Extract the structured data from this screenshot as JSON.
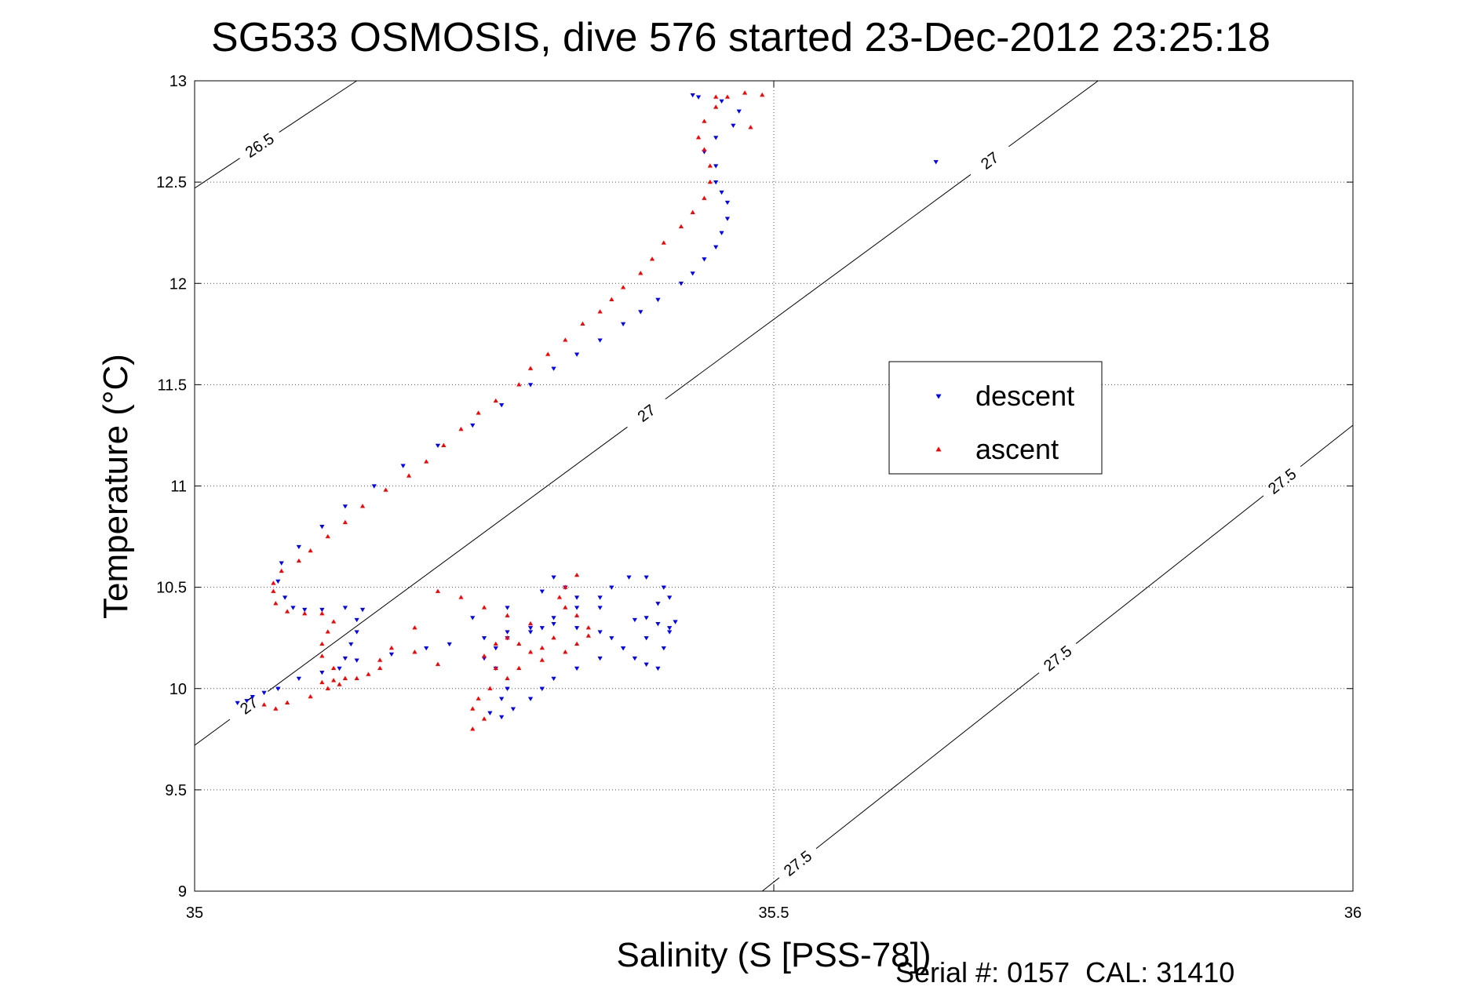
{
  "chart_data": {
    "type": "scatter",
    "title": "SG533 OSMOSIS, dive 576 started 23-Dec-2012 23:25:18",
    "xlabel": "Salinity (S [PSS-78])",
    "ylabel": "Temperature (°C)",
    "xlim": [
      35,
      36
    ],
    "ylim": [
      9,
      13
    ],
    "xticks": [
      35,
      35.5,
      36
    ],
    "xtick_labels": [
      "35",
      "35.5",
      "36"
    ],
    "yticks": [
      9,
      9.5,
      10,
      10.5,
      11,
      11.5,
      12,
      12.5,
      13
    ],
    "ytick_labels": [
      "9",
      "9.5",
      "10",
      "10.5",
      "11",
      "11.5",
      "12",
      "12.5",
      "13"
    ],
    "grid": true,
    "legend_position": "right-middle",
    "footer": "Serial #: 0157  CAL: 31410",
    "density_contours": [
      {
        "label": "26.5",
        "points": [
          [
            35.0,
            12.47
          ],
          [
            35.14,
            13.0
          ]
        ]
      },
      {
        "label": "27",
        "points": [
          [
            35.0,
            9.72
          ],
          [
            35.78,
            13.0
          ]
        ]
      },
      {
        "label": "27.5",
        "points": [
          [
            35.49,
            9.0
          ],
          [
            36.0,
            11.3
          ]
        ]
      }
    ],
    "series": [
      {
        "name": "descent",
        "color": "#0000ff",
        "marker": "triangle-down",
        "points": [
          [
            35.037,
            9.93
          ],
          [
            35.045,
            9.94
          ],
          [
            35.05,
            9.96
          ],
          [
            35.06,
            9.98
          ],
          [
            35.072,
            10.0
          ],
          [
            35.09,
            10.05
          ],
          [
            35.11,
            10.08
          ],
          [
            35.125,
            10.1
          ],
          [
            35.13,
            10.15
          ],
          [
            35.135,
            10.22
          ],
          [
            35.14,
            10.28
          ],
          [
            35.14,
            10.34
          ],
          [
            35.145,
            10.39
          ],
          [
            35.13,
            10.4
          ],
          [
            35.11,
            10.39
          ],
          [
            35.095,
            10.39
          ],
          [
            35.085,
            10.4
          ],
          [
            35.078,
            10.45
          ],
          [
            35.072,
            10.53
          ],
          [
            35.075,
            10.62
          ],
          [
            35.09,
            10.7
          ],
          [
            35.11,
            10.8
          ],
          [
            35.13,
            10.9
          ],
          [
            35.155,
            11.0
          ],
          [
            35.18,
            11.1
          ],
          [
            35.21,
            11.2
          ],
          [
            35.24,
            11.3
          ],
          [
            35.265,
            11.4
          ],
          [
            35.29,
            11.5
          ],
          [
            35.31,
            11.58
          ],
          [
            35.33,
            11.65
          ],
          [
            35.35,
            11.72
          ],
          [
            35.37,
            11.8
          ],
          [
            35.385,
            11.86
          ],
          [
            35.4,
            11.92
          ],
          [
            35.42,
            12.0
          ],
          [
            35.43,
            12.05
          ],
          [
            35.44,
            12.12
          ],
          [
            35.45,
            12.18
          ],
          [
            35.455,
            12.25
          ],
          [
            35.46,
            12.32
          ],
          [
            35.46,
            12.4
          ],
          [
            35.455,
            12.45
          ],
          [
            35.45,
            12.5
          ],
          [
            35.45,
            12.58
          ],
          [
            35.44,
            12.65
          ],
          [
            35.45,
            12.72
          ],
          [
            35.465,
            12.78
          ],
          [
            35.47,
            12.85
          ],
          [
            35.455,
            12.9
          ],
          [
            35.435,
            12.92
          ],
          [
            35.43,
            12.93
          ],
          [
            35.14,
            10.14
          ],
          [
            35.17,
            10.17
          ],
          [
            35.2,
            10.2
          ],
          [
            35.22,
            10.22
          ],
          [
            35.25,
            10.25
          ],
          [
            35.27,
            10.28
          ],
          [
            35.29,
            10.3
          ],
          [
            35.31,
            10.35
          ],
          [
            35.33,
            10.4
          ],
          [
            35.35,
            10.45
          ],
          [
            35.36,
            10.5
          ],
          [
            35.375,
            10.55
          ],
          [
            35.39,
            10.55
          ],
          [
            35.405,
            10.5
          ],
          [
            35.41,
            10.45
          ],
          [
            35.4,
            10.42
          ],
          [
            35.39,
            10.35
          ],
          [
            35.4,
            10.32
          ],
          [
            35.41,
            10.28
          ],
          [
            35.39,
            10.25
          ],
          [
            35.37,
            10.2
          ],
          [
            35.35,
            10.15
          ],
          [
            35.33,
            10.1
          ],
          [
            35.31,
            10.05
          ],
          [
            35.3,
            10.0
          ],
          [
            35.29,
            9.95
          ],
          [
            35.275,
            9.9
          ],
          [
            35.265,
            9.86
          ],
          [
            35.255,
            9.88
          ],
          [
            35.265,
            9.95
          ],
          [
            35.27,
            10.0
          ],
          [
            35.26,
            10.1
          ],
          [
            35.25,
            10.15
          ],
          [
            35.26,
            10.2
          ],
          [
            35.27,
            10.25
          ],
          [
            35.29,
            10.28
          ],
          [
            35.3,
            10.3
          ],
          [
            35.31,
            10.32
          ],
          [
            35.33,
            10.3
          ],
          [
            35.35,
            10.28
          ],
          [
            35.36,
            10.25
          ],
          [
            35.37,
            10.2
          ],
          [
            35.38,
            10.15
          ],
          [
            35.39,
            10.12
          ],
          [
            35.4,
            10.1
          ],
          [
            35.405,
            10.2
          ],
          [
            35.41,
            10.3
          ],
          [
            35.415,
            10.33
          ],
          [
            35.38,
            10.34
          ],
          [
            35.35,
            10.4
          ],
          [
            35.33,
            10.45
          ],
          [
            35.32,
            10.5
          ],
          [
            35.31,
            10.55
          ],
          [
            35.3,
            10.48
          ],
          [
            35.27,
            10.4
          ],
          [
            35.24,
            10.35
          ],
          [
            35.64,
            12.6
          ]
        ]
      },
      {
        "name": "ascent",
        "color": "#ff0000",
        "marker": "triangle-up",
        "points": [
          [
            35.06,
            9.92
          ],
          [
            35.07,
            9.9
          ],
          [
            35.08,
            9.93
          ],
          [
            35.1,
            9.96
          ],
          [
            35.115,
            10.0
          ],
          [
            35.125,
            10.02
          ],
          [
            35.13,
            10.05
          ],
          [
            35.12,
            10.1
          ],
          [
            35.11,
            10.16
          ],
          [
            35.11,
            10.22
          ],
          [
            35.115,
            10.28
          ],
          [
            35.12,
            10.33
          ],
          [
            35.11,
            10.37
          ],
          [
            35.095,
            10.37
          ],
          [
            35.08,
            10.38
          ],
          [
            35.07,
            10.42
          ],
          [
            35.068,
            10.48
          ],
          [
            35.068,
            10.52
          ],
          [
            35.075,
            10.58
          ],
          [
            35.09,
            10.63
          ],
          [
            35.1,
            10.68
          ],
          [
            35.115,
            10.75
          ],
          [
            35.13,
            10.82
          ],
          [
            35.145,
            10.9
          ],
          [
            35.165,
            10.98
          ],
          [
            35.185,
            11.05
          ],
          [
            35.2,
            11.12
          ],
          [
            35.215,
            11.2
          ],
          [
            35.23,
            11.28
          ],
          [
            35.245,
            11.36
          ],
          [
            35.26,
            11.42
          ],
          [
            35.28,
            11.5
          ],
          [
            35.29,
            11.58
          ],
          [
            35.305,
            11.65
          ],
          [
            35.32,
            11.72
          ],
          [
            35.335,
            11.8
          ],
          [
            35.35,
            11.86
          ],
          [
            35.36,
            11.92
          ],
          [
            35.37,
            11.98
          ],
          [
            35.385,
            12.05
          ],
          [
            35.395,
            12.12
          ],
          [
            35.405,
            12.2
          ],
          [
            35.42,
            12.28
          ],
          [
            35.43,
            12.35
          ],
          [
            35.44,
            12.42
          ],
          [
            35.445,
            12.5
          ],
          [
            35.445,
            12.58
          ],
          [
            35.44,
            12.66
          ],
          [
            35.435,
            12.72
          ],
          [
            35.44,
            12.8
          ],
          [
            35.45,
            12.87
          ],
          [
            35.46,
            12.92
          ],
          [
            35.475,
            12.94
          ],
          [
            35.49,
            12.93
          ],
          [
            35.45,
            12.92
          ],
          [
            35.33,
            10.56
          ],
          [
            35.32,
            10.5
          ],
          [
            35.315,
            10.45
          ],
          [
            35.32,
            10.4
          ],
          [
            35.33,
            10.36
          ],
          [
            35.34,
            10.3
          ],
          [
            35.34,
            10.26
          ],
          [
            35.33,
            10.22
          ],
          [
            35.32,
            10.18
          ],
          [
            35.3,
            10.14
          ],
          [
            35.28,
            10.1
          ],
          [
            35.27,
            10.05
          ],
          [
            35.255,
            10.0
          ],
          [
            35.245,
            9.95
          ],
          [
            35.24,
            9.9
          ],
          [
            35.25,
            9.85
          ],
          [
            35.24,
            9.8
          ],
          [
            35.26,
            10.1
          ],
          [
            35.25,
            10.16
          ],
          [
            35.26,
            10.22
          ],
          [
            35.27,
            10.25
          ],
          [
            35.28,
            10.22
          ],
          [
            35.29,
            10.18
          ],
          [
            35.3,
            10.2
          ],
          [
            35.31,
            10.25
          ],
          [
            35.29,
            10.32
          ],
          [
            35.27,
            10.36
          ],
          [
            35.25,
            10.4
          ],
          [
            35.23,
            10.45
          ],
          [
            35.21,
            10.48
          ],
          [
            35.19,
            10.3
          ],
          [
            35.17,
            10.2
          ],
          [
            35.16,
            10.1
          ],
          [
            35.15,
            10.07
          ],
          [
            35.14,
            10.05
          ],
          [
            35.12,
            10.04
          ],
          [
            35.11,
            10.03
          ],
          [
            35.16,
            10.14
          ],
          [
            35.19,
            10.18
          ],
          [
            35.21,
            10.12
          ],
          [
            35.48,
            12.77
          ]
        ]
      }
    ]
  }
}
